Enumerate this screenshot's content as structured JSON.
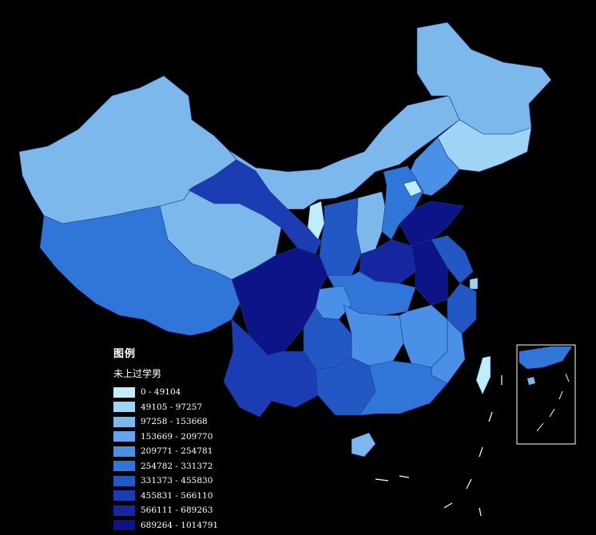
{
  "legend": {
    "title": "图例",
    "field": "未上过学男",
    "classes": [
      {
        "label": "0 - 49104",
        "color": "#bfeefa"
      },
      {
        "label": "49105 - 97257",
        "color": "#9ed4f4"
      },
      {
        "label": "97258 - 153668",
        "color": "#7cb8ec"
      },
      {
        "label": "153669 - 209770",
        "color": "#64a4ea"
      },
      {
        "label": "209771 - 254781",
        "color": "#4a90e6"
      },
      {
        "label": "254782 - 331372",
        "color": "#2f76d8"
      },
      {
        "label": "331373 - 455830",
        "color": "#2358c4"
      },
      {
        "label": "455831 - 566110",
        "color": "#1b3cb2"
      },
      {
        "label": "566111 - 689263",
        "color": "#1526a0"
      },
      {
        "label": "689264 - 1014791",
        "color": "#0c1488"
      }
    ]
  }
}
